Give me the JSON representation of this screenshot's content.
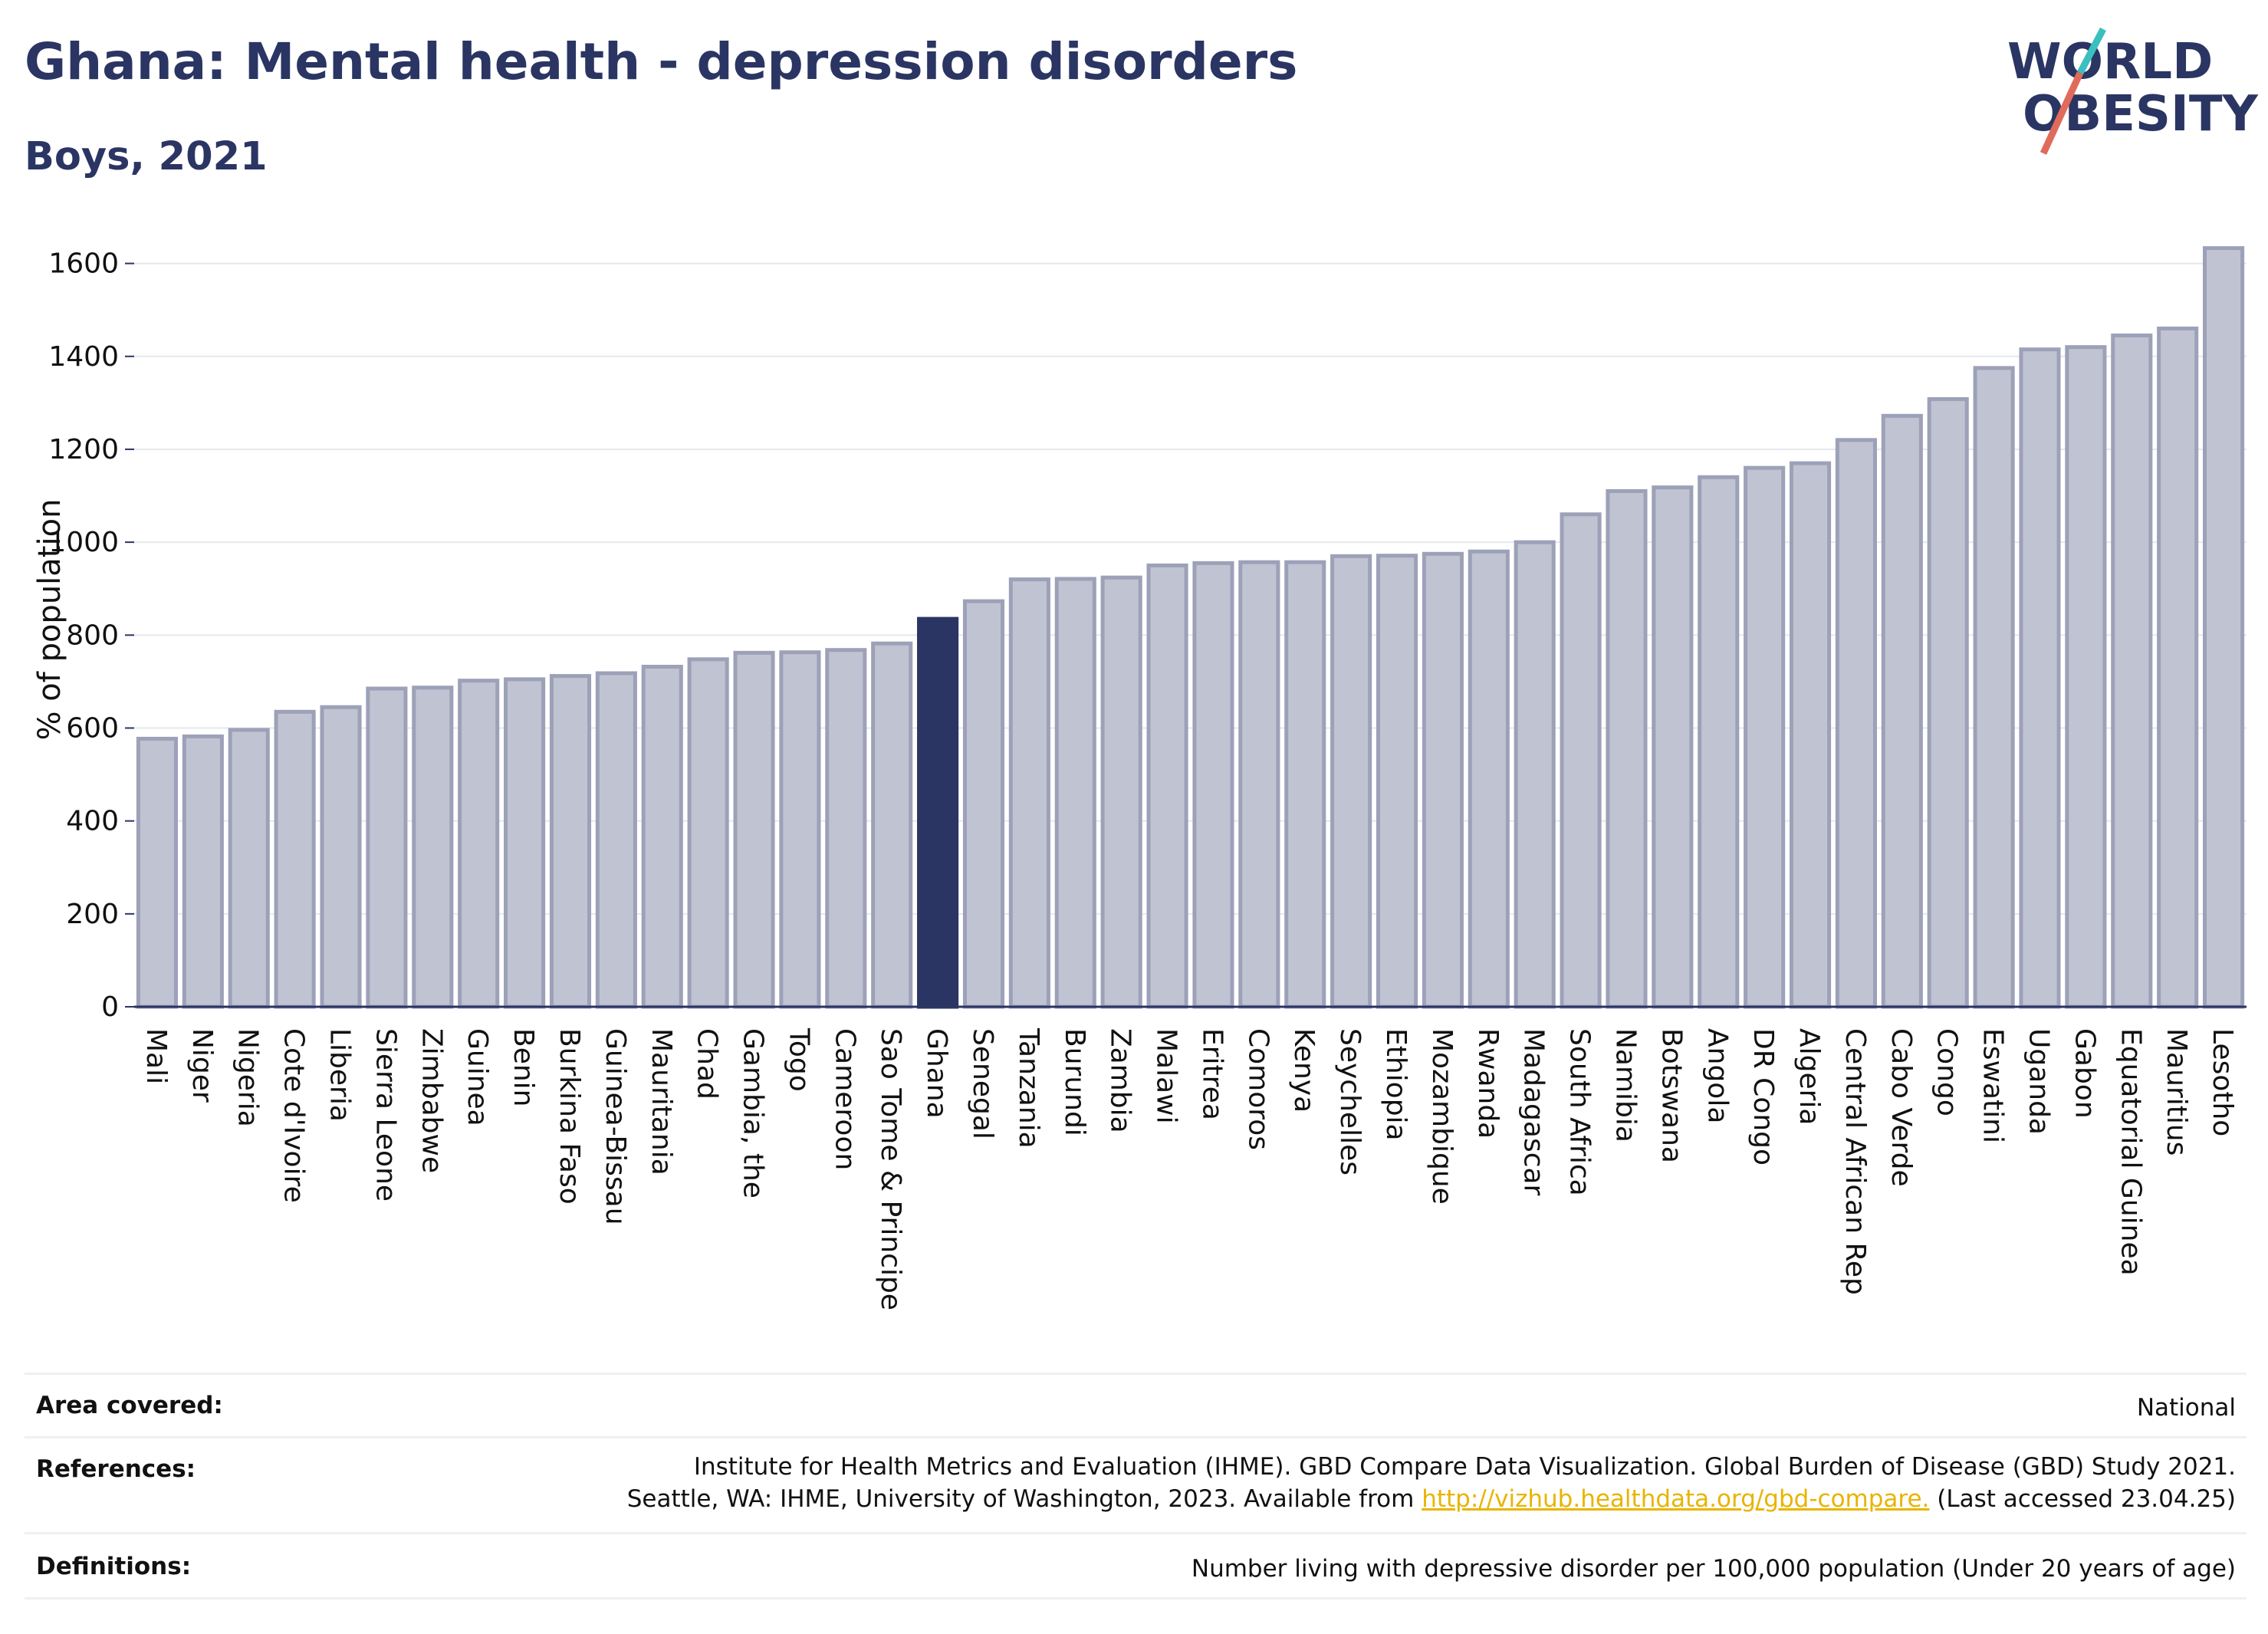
{
  "title": "Ghana: Mental health - depression disorders",
  "subtitle": "Boys, 2021",
  "logo": {
    "line1": "WORLD",
    "line2": "OBESITY",
    "colors": {
      "text": "#2a3563",
      "slash_top": "#3bbfbf",
      "slash_bottom": "#e06b5a"
    }
  },
  "colors": {
    "bar": "#c0c3d1",
    "bar_stroke": "#9da1b8",
    "highlight": "#2a3563",
    "grid": "#e6e8ed",
    "axis": "#2a3563",
    "text": "#111111",
    "link": "#e8b400"
  },
  "chart_data": {
    "type": "bar",
    "title": "",
    "xlabel": "",
    "ylabel": "% of population",
    "ylim": [
      0,
      1700
    ],
    "yticks": [
      0,
      200,
      400,
      600,
      800,
      1000,
      1200,
      1400,
      1600
    ],
    "grid": true,
    "highlight": "Ghana",
    "categories": [
      "Mali",
      "Niger",
      "Nigeria",
      "Cote d'Ivoire",
      "Liberia",
      "Sierra Leone",
      "Zimbabwe",
      "Guinea",
      "Benin",
      "Burkina Faso",
      "Guinea-Bissau",
      "Mauritania",
      "Chad",
      "Gambia, the",
      "Togo",
      "Cameroon",
      "Sao Tome & Principe",
      "Ghana",
      "Senegal",
      "Tanzania",
      "Burundi",
      "Zambia",
      "Malawi",
      "Eritrea",
      "Comoros",
      "Kenya",
      "Seychelles",
      "Ethiopia",
      "Mozambique",
      "Rwanda",
      "Madagascar",
      "South Africa",
      "Namibia",
      "Botswana",
      "Angola",
      "DR Congo",
      "Algeria",
      "Central African Rep",
      "Cabo Verde",
      "Congo",
      "Eswatini",
      "Uganda",
      "Gabon",
      "Equatorial Guinea",
      "Mauritius",
      "Lesotho"
    ],
    "values": [
      577,
      582,
      596,
      635,
      645,
      685,
      687,
      702,
      705,
      712,
      718,
      732,
      748,
      762,
      763,
      768,
      782,
      835,
      873,
      920,
      921,
      924,
      950,
      955,
      957,
      957,
      970,
      971,
      975,
      980,
      1000,
      1060,
      1110,
      1118,
      1140,
      1160,
      1170,
      1220,
      1272,
      1308,
      1375,
      1415,
      1420,
      1445,
      1460,
      1633
    ]
  },
  "info": {
    "area_label": "Area covered:",
    "area_value": "National",
    "references_label": "References:",
    "references_line1": "Institute for Health Metrics and Evaluation (IHME). GBD Compare Data Visualization. Global Burden of Disease (GBD) Study 2021.",
    "references_line2_pre": "Seattle, WA: IHME, University of Washington, 2023. Available from ",
    "references_link": "http://vizhub.healthdata.org/gbd-compare.",
    "references_line2_post": " (Last accessed 23.04.25)",
    "definitions_label": "Definitions:",
    "definitions_value": "Number living with depressive disorder per 100,000 population (Under 20 years of age)"
  }
}
